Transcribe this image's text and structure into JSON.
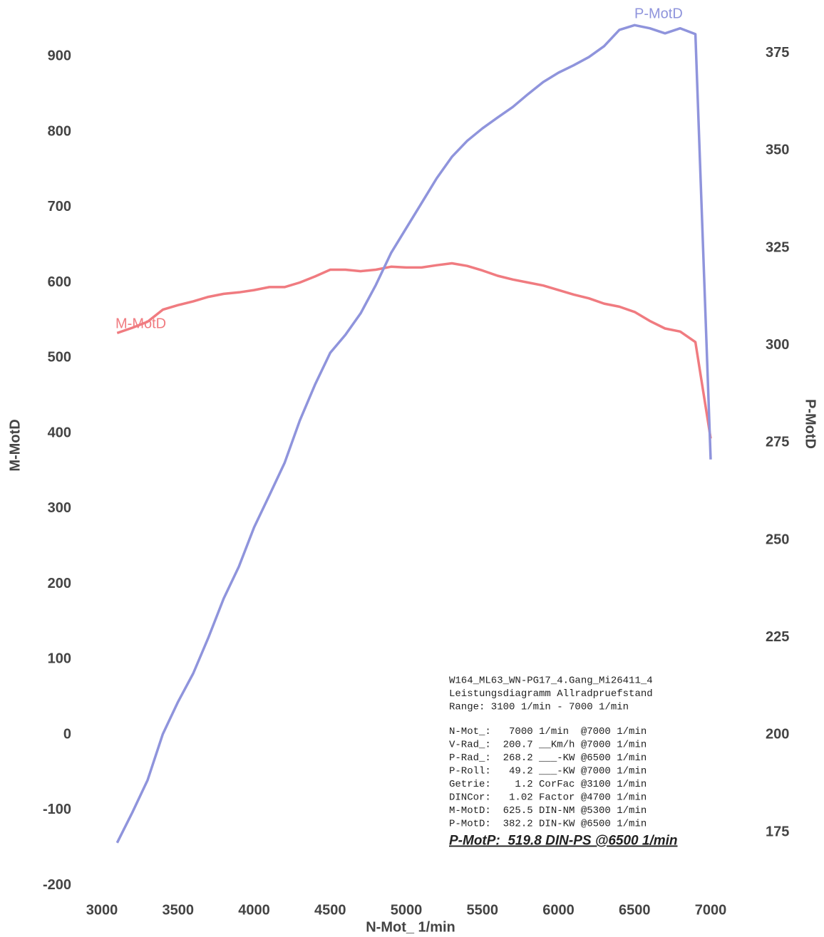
{
  "chart_data": {
    "type": "line",
    "x_label": "N-Mot_ 1/min",
    "y_label": "M-MotD",
    "y2_label": "P-MotD",
    "x": [
      3100,
      3200,
      3300,
      3400,
      3500,
      3600,
      3700,
      3800,
      3900,
      4000,
      4100,
      4200,
      4300,
      4400,
      4500,
      4600,
      4700,
      4800,
      4900,
      5000,
      5100,
      5200,
      5300,
      5400,
      5500,
      5600,
      5700,
      5800,
      5900,
      6000,
      6100,
      6200,
      6300,
      6400,
      6500,
      6600,
      6700,
      6800,
      6900,
      7000
    ],
    "xlim": [
      3000,
      7000
    ],
    "xticks": [
      3000,
      3500,
      4000,
      4500,
      5000,
      5500,
      6000,
      6500,
      7000
    ],
    "ylim": [
      -207,
      956
    ],
    "yticks": [
      -200,
      -100,
      0,
      100,
      200,
      300,
      400,
      500,
      600,
      700,
      800,
      900
    ],
    "y2lim": [
      160,
      385
    ],
    "y2ticks": [
      175,
      200,
      225,
      250,
      275,
      300,
      325,
      350,
      375
    ],
    "grid": false,
    "series": [
      {
        "name": "M-MotD",
        "color": "#f07b80",
        "axis": "y",
        "values": [
          533,
          540,
          548,
          564,
          570,
          575,
          581,
          585,
          587,
          590,
          594,
          594,
          600,
          608,
          617,
          617,
          615,
          617,
          621,
          620,
          620,
          623,
          625.5,
          622,
          616,
          609,
          604,
          600,
          596,
          590,
          584,
          579,
          572,
          568,
          561,
          549,
          539,
          535,
          521,
          393
        ]
      },
      {
        "name": "P-MotD",
        "color": "#8f94dc",
        "axis": "y2",
        "values": [
          172.3,
          180.1,
          188.4,
          200.2,
          208.5,
          215.8,
          225,
          235,
          243.2,
          253.3,
          261.5,
          269.8,
          280.7,
          289.9,
          298.1,
          302.7,
          308.2,
          315.5,
          323.7,
          330.1,
          336.5,
          342.9,
          348.4,
          352.5,
          355.7,
          358.5,
          361.2,
          364.5,
          367.6,
          370,
          371.9,
          374,
          376.8,
          381,
          382.2,
          381.4,
          380.1,
          381.4,
          379.9,
          270.7
        ]
      }
    ],
    "info": {
      "header": [
        "W164_ML63_WN-PG17_4.Gang_Mi26411_4",
        "Leistungsdiagramm Allradpruefstand",
        "Range: 3100 1/min - 7000 1/min"
      ],
      "stats": [
        "N-Mot_:   7000 1/min  @7000 1/min",
        "V-Rad_:  200.7 __Km/h @7000 1/min",
        "P-Rad_:  268.2 ___-KW @6500 1/min",
        "P-Roll:   49.2 ___-KW @7000 1/min",
        "Getrie:    1.2 CorFac @3100 1/min",
        "DINCor:   1.02 Factor @4700 1/min"
      ],
      "series_stats": [
        "M-MotD:  625.5 DIN-NM @5300 1/min",
        "P-MotD:  382.2 DIN-KW @6500 1/min"
      ],
      "summary": "P-MotP:  519.8 DIN-PS @6500 1/min"
    }
  }
}
